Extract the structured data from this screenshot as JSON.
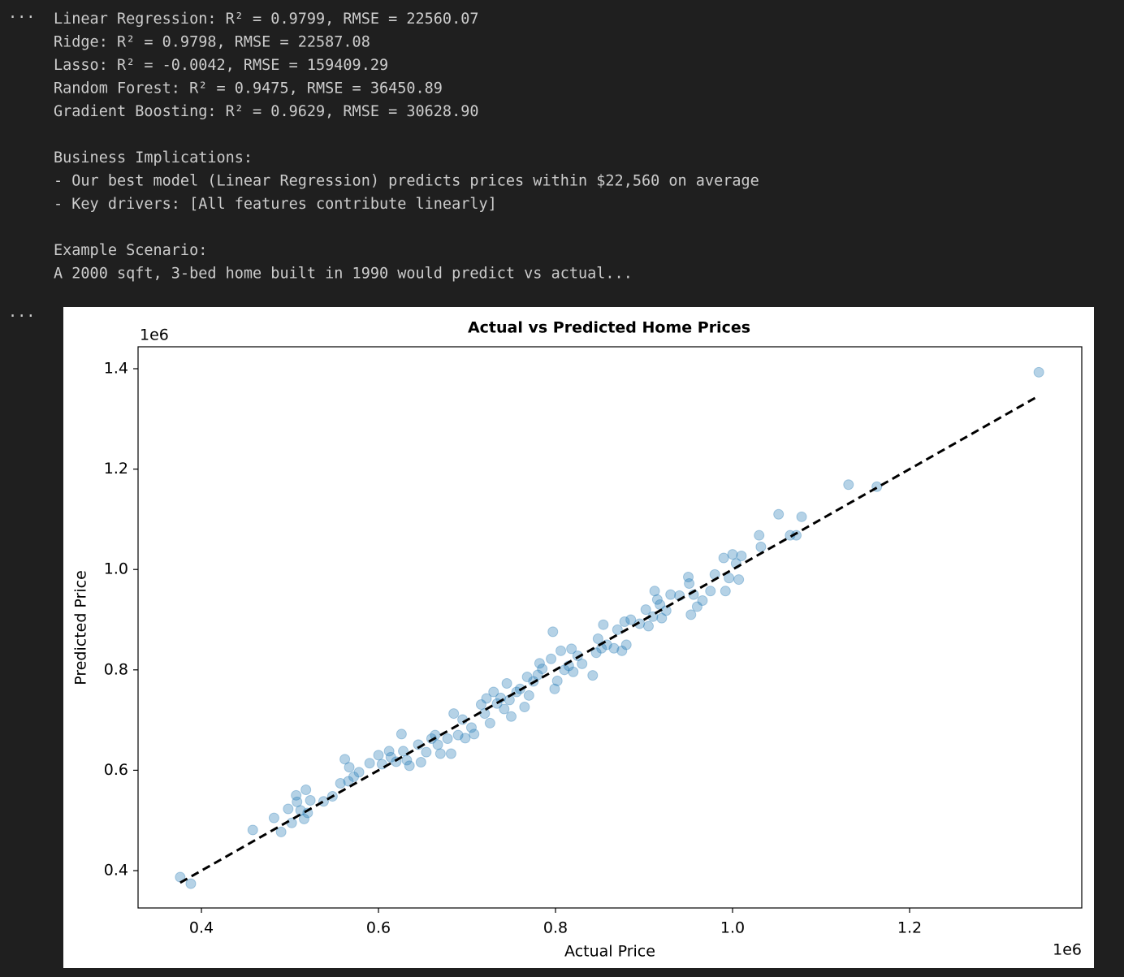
{
  "output_prompt": "···",
  "output_blocks": [
    [
      "Linear Regression: R² = 0.9799, RMSE = 22560.07",
      "Ridge: R² = 0.9798, RMSE = 22587.08",
      "Lasso: R² = -0.0042, RMSE = 159409.29",
      "Random Forest: R² = 0.9475, RMSE = 36450.89",
      "Gradient Boosting: R² = 0.9629, RMSE = 30628.90"
    ],
    [
      "Business Implications:",
      "- Our best model (Linear Regression) predicts prices within $22,560 on average",
      "- Key drivers: [All features contribute linearly]"
    ],
    [
      "Example Scenario:",
      "A 2000 sqft, 3-bed home built in 1990 would predict vs actual..."
    ]
  ],
  "chart_data": {
    "type": "scatter",
    "title": "Actual vs Predicted Home Prices",
    "x_label": "Actual Price",
    "y_label": "Predicted Price",
    "x_offset_label": "1e6",
    "y_offset_label": "1e6",
    "color": "#1f77b4",
    "xlim": [
      0.3284,
      1.3945
    ],
    "ylim": [
      0.3256,
      1.4437
    ],
    "xticks": [
      0.4,
      0.6,
      0.8,
      {
        "value": 1,
        "label": "1.0"
      },
      1.2
    ],
    "yticks": [
      0.4,
      0.6,
      0.8,
      {
        "value": 1,
        "label": "1.0"
      },
      1.2,
      1.4
    ],
    "reference_line": {
      "x": [
        0.376,
        1.346
      ],
      "y": [
        0.376,
        1.346
      ],
      "color": "#000000"
    },
    "x": [
      0.376,
      0.388,
      0.458,
      0.482,
      0.49,
      0.498,
      0.502,
      0.507,
      0.508,
      0.512,
      0.516,
      0.518,
      0.52,
      0.523,
      0.538,
      0.548,
      0.557,
      0.562,
      0.566,
      0.567,
      0.572,
      0.578,
      0.59,
      0.6,
      0.604,
      0.612,
      0.614,
      0.62,
      0.626,
      0.628,
      0.632,
      0.635,
      0.645,
      0.648,
      0.654,
      0.66,
      0.664,
      0.667,
      0.67,
      0.678,
      0.682,
      0.685,
      0.69,
      0.695,
      0.698,
      0.705,
      0.708,
      0.716,
      0.72,
      0.722,
      0.726,
      0.73,
      0.734,
      0.738,
      0.742,
      0.745,
      0.748,
      0.75,
      0.756,
      0.76,
      0.765,
      0.768,
      0.77,
      0.775,
      0.78,
      0.782,
      0.785,
      0.795,
      0.797,
      0.799,
      0.802,
      0.806,
      0.81,
      0.815,
      0.818,
      0.82,
      0.825,
      0.83,
      0.842,
      0.846,
      0.848,
      0.852,
      0.854,
      0.858,
      0.866,
      0.87,
      0.875,
      0.878,
      0.88,
      0.885,
      0.895,
      0.902,
      0.905,
      0.91,
      0.912,
      0.915,
      0.918,
      0.92,
      0.925,
      0.93,
      0.94,
      0.95,
      0.951,
      0.953,
      0.956,
      0.96,
      0.966,
      0.975,
      0.98,
      0.99,
      0.992,
      0.996,
      1.0,
      1.004,
      1.007,
      1.01,
      1.03,
      1.032,
      1.052,
      1.065,
      1.072,
      1.078,
      1.131,
      1.163,
      1.346
    ],
    "y": [
      0.387,
      0.374,
      0.481,
      0.505,
      0.477,
      0.523,
      0.495,
      0.55,
      0.537,
      0.52,
      0.503,
      0.561,
      0.515,
      0.54,
      0.538,
      0.548,
      0.574,
      0.622,
      0.578,
      0.606,
      0.587,
      0.596,
      0.614,
      0.63,
      0.612,
      0.638,
      0.626,
      0.617,
      0.672,
      0.638,
      0.62,
      0.609,
      0.651,
      0.616,
      0.636,
      0.663,
      0.67,
      0.651,
      0.633,
      0.663,
      0.633,
      0.713,
      0.67,
      0.701,
      0.664,
      0.685,
      0.672,
      0.731,
      0.713,
      0.743,
      0.694,
      0.756,
      0.733,
      0.744,
      0.722,
      0.773,
      0.74,
      0.707,
      0.756,
      0.762,
      0.726,
      0.786,
      0.749,
      0.777,
      0.79,
      0.813,
      0.802,
      0.822,
      0.876,
      0.762,
      0.778,
      0.838,
      0.8,
      0.808,
      0.842,
      0.796,
      0.828,
      0.812,
      0.789,
      0.834,
      0.862,
      0.843,
      0.89,
      0.85,
      0.843,
      0.88,
      0.838,
      0.896,
      0.85,
      0.9,
      0.892,
      0.92,
      0.887,
      0.906,
      0.957,
      0.94,
      0.93,
      0.903,
      0.918,
      0.95,
      0.948,
      0.985,
      0.972,
      0.91,
      0.95,
      0.926,
      0.938,
      0.957,
      0.99,
      1.023,
      0.957,
      0.983,
      1.03,
      1.012,
      0.98,
      1.027,
      1.068,
      1.045,
      1.11,
      1.068,
      1.068,
      1.105,
      1.169,
      1.165,
      1.393
    ]
  }
}
